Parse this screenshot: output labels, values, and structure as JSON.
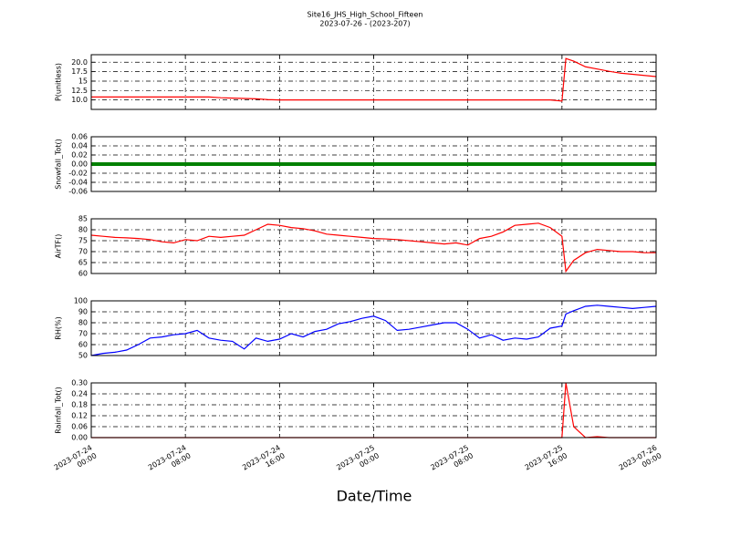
{
  "chart_data": {
    "title": "Site16_JHS_High_School_Fifteen",
    "subtitle": "2023-07-26 - (2023-207)",
    "xlabel": "Date/Time",
    "grid": true,
    "x": [
      "2023-07-24 00:00",
      "2023-07-24 01:00",
      "2023-07-24 02:00",
      "2023-07-24 03:00",
      "2023-07-24 04:00",
      "2023-07-24 05:00",
      "2023-07-24 06:00",
      "2023-07-24 07:00",
      "2023-07-24 08:00",
      "2023-07-24 09:00",
      "2023-07-24 10:00",
      "2023-07-24 11:00",
      "2023-07-24 12:00",
      "2023-07-24 13:00",
      "2023-07-24 14:00",
      "2023-07-24 15:00",
      "2023-07-24 16:00",
      "2023-07-24 17:00",
      "2023-07-24 18:00",
      "2023-07-24 19:00",
      "2023-07-24 20:00",
      "2023-07-24 21:00",
      "2023-07-24 22:00",
      "2023-07-24 23:00",
      "2023-07-25 00:00",
      "2023-07-25 01:00",
      "2023-07-25 02:00",
      "2023-07-25 03:00",
      "2023-07-25 04:00",
      "2023-07-25 05:00",
      "2023-07-25 06:00",
      "2023-07-25 07:00",
      "2023-07-25 08:00",
      "2023-07-25 09:00",
      "2023-07-25 10:00",
      "2023-07-25 11:00",
      "2023-07-25 12:00",
      "2023-07-25 13:00",
      "2023-07-25 14:00",
      "2023-07-25 15:00",
      "2023-07-25 16:00",
      "2023-07-25 16:20",
      "2023-07-25 17:00",
      "2023-07-25 18:00",
      "2023-07-25 19:00",
      "2023-07-25 20:00",
      "2023-07-25 21:00",
      "2023-07-25 22:00",
      "2023-07-25 23:00",
      "2023-07-26 00:00"
    ],
    "xlim": [
      "2023-07-24 00:00",
      "2023-07-26 00:00"
    ],
    "xticks": [
      "2023-07-24 00:00",
      "2023-07-24 08:00",
      "2023-07-24 16:00",
      "2023-07-25 00:00",
      "2023-07-25 08:00",
      "2023-07-25 16:00",
      "2023-07-26 00:00"
    ],
    "panels": [
      {
        "type": "line",
        "ylabel": "P(unitless)",
        "color": "#ff0000",
        "ylim": [
          7.5,
          22
        ],
        "yticks": [
          {
            "value": 10,
            "label": "10.0"
          },
          12.5,
          15,
          17.5,
          {
            "value": 20,
            "label": "20.0"
          }
        ],
        "values": [
          10.8,
          10.8,
          10.8,
          10.8,
          10.8,
          10.8,
          10.8,
          10.8,
          10.8,
          10.8,
          10.8,
          10.6,
          10.5,
          10.4,
          10.3,
          10.1,
          10.0,
          10.0,
          10.0,
          10.0,
          10.0,
          10.0,
          10.0,
          10.0,
          10.0,
          10.0,
          10.0,
          10.0,
          10.0,
          10.0,
          10.0,
          10.0,
          10.0,
          10.0,
          10.0,
          10.0,
          10.0,
          10.0,
          10.0,
          10.0,
          9.7,
          21.0,
          20.3,
          18.8,
          18.2,
          17.6,
          17.1,
          16.8,
          16.5,
          16.2
        ]
      },
      {
        "type": "line",
        "ylabel": "Snowfall_Tot()",
        "color": "#008000",
        "ylim": [
          -0.06,
          0.06
        ],
        "yticks": [
          -0.06,
          -0.04,
          -0.02,
          {
            "value": 0,
            "label": "0.00"
          },
          0.02,
          0.04,
          0.06
        ],
        "values": [
          0,
          0,
          0,
          0,
          0,
          0,
          0,
          0,
          0,
          0,
          0,
          0,
          0,
          0,
          0,
          0,
          0,
          0,
          0,
          0,
          0,
          0,
          0,
          0,
          0,
          0,
          0,
          0,
          0,
          0,
          0,
          0,
          0,
          0,
          0,
          0,
          0,
          0,
          0,
          0,
          0,
          0,
          0,
          0,
          0,
          0,
          0,
          0,
          0,
          0
        ]
      },
      {
        "type": "line",
        "ylabel": "AirTF()",
        "color": "#ff0000",
        "ylim": [
          60,
          85
        ],
        "yticks": [
          60,
          65,
          70,
          75,
          80,
          85
        ],
        "values": [
          77.5,
          77,
          76.5,
          76.3,
          76,
          75.5,
          74.5,
          74,
          75.5,
          75,
          77,
          76.5,
          77,
          77.5,
          80,
          82.5,
          82,
          81,
          80.5,
          79.5,
          78,
          77.5,
          77,
          76.5,
          76,
          75.8,
          75.5,
          75,
          74.5,
          74,
          73.5,
          74,
          73,
          76,
          77,
          79,
          82,
          82.5,
          83,
          81,
          77,
          61,
          66,
          69.5,
          71,
          70.5,
          70,
          70,
          69.5,
          69.5
        ]
      },
      {
        "type": "line",
        "ylabel": "RH(%)",
        "color": "#0000ff",
        "ylim": [
          50,
          100
        ],
        "yticks": [
          50,
          60,
          70,
          80,
          90,
          100
        ],
        "values": [
          50,
          52,
          53,
          55,
          60,
          66,
          67,
          69,
          70,
          73,
          66,
          64,
          63,
          56,
          66,
          63,
          65,
          70,
          67,
          72,
          74,
          79,
          81,
          84,
          86,
          82,
          73,
          74,
          76,
          78,
          80,
          80,
          74,
          66,
          69,
          64,
          66,
          65,
          67,
          75,
          77,
          88,
          91,
          95,
          96,
          95,
          94,
          93,
          94,
          95
        ]
      },
      {
        "type": "line",
        "ylabel": "Rainfall_Tot()",
        "color": "#ff0000",
        "ylim": [
          0,
          0.3
        ],
        "yticks": [
          {
            "value": 0,
            "label": "0.00"
          },
          0.06,
          0.12,
          0.18,
          0.24,
          {
            "value": 0.3,
            "label": "0.30"
          }
        ],
        "values": [
          0,
          0,
          0,
          0,
          0,
          0,
          0,
          0,
          0,
          0,
          0,
          0,
          0,
          0,
          0,
          0,
          0,
          0,
          0,
          0,
          0,
          0,
          0,
          0,
          0,
          0,
          0,
          0,
          0,
          0,
          0,
          0,
          0,
          0,
          0,
          0,
          0,
          0,
          0,
          0,
          0,
          0.3,
          0.06,
          0,
          0.005,
          0,
          0,
          0,
          0,
          0
        ]
      }
    ]
  }
}
